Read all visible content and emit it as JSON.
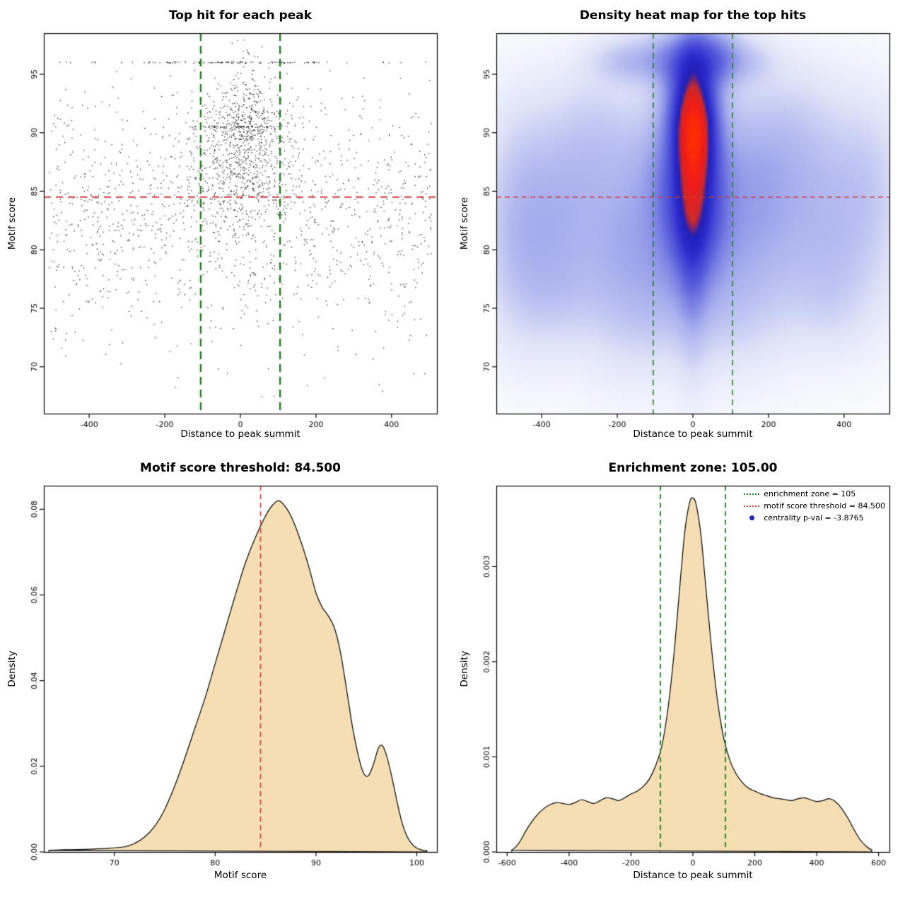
{
  "page": {
    "background": "#ffffff"
  },
  "chart_data": [
    {
      "type": "scatter",
      "title": "Top hit for each peak",
      "xlabel": "Distance to peak summit",
      "ylabel": "Motif score",
      "xlim": [
        -520,
        520
      ],
      "ylim": [
        66,
        98.5
      ],
      "xticks": [
        -400,
        -200,
        0,
        200,
        400
      ],
      "xtick_labels": [
        "-400",
        "-200",
        "0",
        "200",
        "400"
      ],
      "yticks": [
        70,
        75,
        80,
        85,
        90,
        95
      ],
      "ytick_labels": [
        "70",
        "75",
        "80",
        "85",
        "90",
        "95"
      ],
      "point_color": "#000000",
      "seed": 1337,
      "hline": {
        "y": 84.5,
        "color": "#d23b3b",
        "dash": [
          10,
          7
        ],
        "width": 2.2
      },
      "vlines": {
        "xs": [
          -105,
          105
        ],
        "color": "#1e7d1e",
        "dash": [
          11,
          7
        ],
        "width": 2.4
      },
      "clusters": [
        {
          "n": 1300,
          "x": [
            "uniform",
            -505,
            505
          ],
          "y": [
            "normal",
            83,
            5
          ],
          "yclip": [
            67,
            95.5
          ]
        },
        {
          "n": 600,
          "x": [
            "normal",
            0,
            75
          ],
          "xclip": [
            -505,
            505
          ],
          "y": [
            "normal",
            87.5,
            3.2
          ],
          "yclip": [
            72,
            95.7
          ]
        },
        {
          "n": 280,
          "x": [
            "normal",
            15,
            48
          ],
          "y": [
            "normal",
            90.8,
            2.1
          ],
          "yclip": [
            75,
            97.8
          ]
        },
        {
          "n": 70,
          "x": [
            "normal",
            -20,
            110
          ],
          "y": [
            "const",
            96,
            0.07
          ]
        },
        {
          "n": 45,
          "x": [
            "uniform",
            -505,
            505
          ],
          "y": [
            "const",
            96,
            0.05
          ]
        },
        {
          "n": 60,
          "x": [
            "normal",
            -20,
            70
          ],
          "y": [
            "const",
            90.5,
            0.08
          ]
        },
        {
          "n": 22,
          "x": [
            "uniform",
            -480,
            490
          ],
          "y": [
            "uniform",
            66.8,
            74.5
          ]
        },
        {
          "n": 10,
          "x": [
            "normal",
            0,
            30
          ],
          "y": [
            "uniform",
            96.3,
            98.1
          ]
        }
      ]
    },
    {
      "type": "heatmap",
      "title": "Density heat map for the top hits",
      "xlabel": "Distance to peak summit",
      "ylabel": "Motif score",
      "xlim": [
        -520,
        520
      ],
      "ylim": [
        66,
        98.5
      ],
      "xticks": [
        -400,
        -200,
        0,
        200,
        400
      ],
      "xtick_labels": [
        "-400",
        "-200",
        "0",
        "200",
        "400"
      ],
      "yticks": [
        70,
        75,
        80,
        85,
        90,
        95
      ],
      "ytick_labels": [
        "70",
        "75",
        "80",
        "85",
        "90",
        "95"
      ],
      "hline": {
        "y": 84.5,
        "color": "#d23b3b",
        "dash": [
          7,
          5
        ],
        "width": 1.3
      },
      "vlines": {
        "xs": [
          -105,
          105
        ],
        "color": "#1e7d1e",
        "dash": [
          8,
          6
        ],
        "width": 1.5
      },
      "gamma": 0.45,
      "color_stops": [
        [
          0,
          "#ffffff"
        ],
        [
          0.18,
          "#dfe3f8"
        ],
        [
          0.35,
          "#aab1ee"
        ],
        [
          0.52,
          "#5c63dd"
        ],
        [
          0.66,
          "#2e2ecf"
        ],
        [
          0.75,
          "#1f1fb8"
        ],
        [
          0.8,
          "#cc2a2a"
        ],
        [
          0.88,
          "#ee1c1c"
        ],
        [
          1,
          "#ff2e00"
        ]
      ],
      "blobs": [
        [
          0,
          87,
          60,
          5.5,
          1.5
        ],
        [
          5,
          89.8,
          32,
          2.8,
          2.3
        ],
        [
          0,
          83.5,
          50,
          3.5,
          1.1
        ],
        [
          -3,
          91.8,
          38,
          2.6,
          1.3
        ],
        [
          0,
          86,
          25,
          7,
          1.2
        ],
        [
          0,
          95.8,
          55,
          1.8,
          0.75
        ],
        [
          -40,
          96.3,
          90,
          1.4,
          0.5
        ],
        [
          60,
          96.5,
          45,
          1.6,
          0.55
        ],
        [
          -170,
          96,
          60,
          1.1,
          0.28
        ],
        [
          140,
          96,
          50,
          1.1,
          0.25
        ],
        [
          -300,
          82,
          110,
          5,
          0.33
        ],
        [
          -390,
          85.5,
          80,
          4.5,
          0.26
        ],
        [
          -430,
          78,
          70,
          4,
          0.22
        ],
        [
          -180,
          79,
          80,
          5,
          0.26
        ],
        [
          -80,
          78,
          90,
          4,
          0.28
        ],
        [
          80,
          79.5,
          90,
          5,
          0.28
        ],
        [
          180,
          81,
          90,
          5,
          0.26
        ],
        [
          300,
          84.5,
          110,
          5,
          0.3
        ],
        [
          400,
          80,
          90,
          4.5,
          0.22
        ],
        [
          460,
          86.5,
          60,
          4,
          0.18
        ],
        [
          -250,
          89.5,
          70,
          3.5,
          0.22
        ],
        [
          250,
          89.5,
          80,
          3.5,
          0.2
        ],
        [
          -470,
          83,
          50,
          5,
          0.18
        ],
        [
          150,
          87,
          60,
          4,
          0.25
        ],
        [
          -120,
          86,
          60,
          4,
          0.3
        ],
        [
          -350,
          76.5,
          60,
          2.5,
          0.12
        ],
        [
          350,
          76,
          60,
          2.5,
          0.1
        ],
        [
          0,
          74.5,
          150,
          2.5,
          0.1
        ]
      ]
    },
    {
      "type": "density",
      "title": "Motif score threshold: 84.500",
      "xlabel": "Motif score",
      "ylabel": "Density",
      "xlim": [
        63,
        102
      ],
      "ylim": [
        0,
        0.0855
      ],
      "xticks": [
        70,
        80,
        90,
        100
      ],
      "xtick_labels": [
        "70",
        "80",
        "90",
        "100"
      ],
      "yticks": [
        0,
        0.02,
        0.04,
        0.06,
        0.08
      ],
      "ytick_labels": [
        "0.00",
        "0.02",
        "0.04",
        "0.06",
        "0.08"
      ],
      "fill": "#f5deb3",
      "stroke": "#000000",
      "vlines": {
        "xs": [
          84.5
        ],
        "color": "#d23b3b",
        "dash": [
          7,
          5
        ],
        "width": 1.6
      },
      "curve": [
        [
          63.5,
          0.0004
        ],
        [
          65,
          0.0005
        ],
        [
          67,
          0.0006
        ],
        [
          69,
          0.0008
        ],
        [
          71,
          0.0012
        ],
        [
          72,
          0.002
        ],
        [
          73,
          0.0035
        ],
        [
          74,
          0.006
        ],
        [
          75,
          0.01
        ],
        [
          76,
          0.0155
        ],
        [
          77,
          0.022
        ],
        [
          78,
          0.029
        ],
        [
          79,
          0.036
        ],
        [
          80,
          0.044
        ],
        [
          81,
          0.052
        ],
        [
          82,
          0.06
        ],
        [
          83,
          0.0675
        ],
        [
          84,
          0.0735
        ],
        [
          85,
          0.0785
        ],
        [
          85.7,
          0.081
        ],
        [
          86.3,
          0.082
        ],
        [
          87,
          0.0805
        ],
        [
          87.7,
          0.0775
        ],
        [
          88.5,
          0.0725
        ],
        [
          89.3,
          0.0665
        ],
        [
          90,
          0.0605
        ],
        [
          90.6,
          0.0572
        ],
        [
          91.2,
          0.0552
        ],
        [
          91.8,
          0.0525
        ],
        [
          92.4,
          0.047
        ],
        [
          93,
          0.0385
        ],
        [
          93.6,
          0.0295
        ],
        [
          94.2,
          0.0225
        ],
        [
          94.7,
          0.0185
        ],
        [
          95.2,
          0.0178
        ],
        [
          95.7,
          0.0205
        ],
        [
          96.2,
          0.0243
        ],
        [
          96.6,
          0.0248
        ],
        [
          97,
          0.0225
        ],
        [
          97.5,
          0.0178
        ],
        [
          98,
          0.0122
        ],
        [
          98.5,
          0.0072
        ],
        [
          99,
          0.0038
        ],
        [
          99.5,
          0.0019
        ],
        [
          100,
          0.0009
        ],
        [
          100.6,
          0.0004
        ],
        [
          101,
          0.0003
        ]
      ]
    },
    {
      "type": "density",
      "title": "Enrichment zone: 105.00",
      "xlabel": "Distance to peak summit",
      "ylabel": "Density",
      "xlim": [
        -635,
        635
      ],
      "ylim": [
        0,
        0.00385
      ],
      "xticks": [
        -600,
        -400,
        -200,
        0,
        200,
        400,
        600
      ],
      "xtick_labels": [
        "-600",
        "-400",
        "-200",
        "0",
        "200",
        "400",
        "600"
      ],
      "yticks": [
        0,
        0.001,
        0.002,
        0.003
      ],
      "ytick_labels": [
        "0.000",
        "0.001",
        "0.002",
        "0.003"
      ],
      "fill": "#f5deb3",
      "stroke": "#000000",
      "vlines": {
        "xs": [
          -105,
          105
        ],
        "color": "#1e7d1e",
        "dash": [
          7,
          5
        ],
        "width": 1.8
      },
      "legend": {
        "items": [
          {
            "label": "enrichment zone = 105",
            "type": "line",
            "color": "#1e7d1e"
          },
          {
            "label": "motif score threshold = 84.500",
            "type": "line",
            "color": "#d23b3b"
          },
          {
            "label": "centrality p-val = -3.8765",
            "type": "dot",
            "color": "#2424b4"
          }
        ]
      },
      "curve": [
        [
          -585,
          2e-05
        ],
        [
          -570,
          6e-05
        ],
        [
          -555,
          0.00013
        ],
        [
          -540,
          0.00022
        ],
        [
          -520,
          0.00032
        ],
        [
          -500,
          0.0004
        ],
        [
          -480,
          0.00046
        ],
        [
          -460,
          0.0005
        ],
        [
          -440,
          0.00052
        ],
        [
          -420,
          0.00051
        ],
        [
          -400,
          0.0005
        ],
        [
          -380,
          0.00052
        ],
        [
          -360,
          0.00055
        ],
        [
          -340,
          0.00053
        ],
        [
          -320,
          0.00051
        ],
        [
          -300,
          0.00054
        ],
        [
          -280,
          0.00057
        ],
        [
          -260,
          0.00056
        ],
        [
          -240,
          0.00054
        ],
        [
          -220,
          0.00057
        ],
        [
          -200,
          0.00061
        ],
        [
          -180,
          0.00064
        ],
        [
          -160,
          0.00069
        ],
        [
          -140,
          0.00077
        ],
        [
          -120,
          0.00091
        ],
        [
          -100,
          0.00112
        ],
        [
          -80,
          0.00152
        ],
        [
          -60,
          0.00212
        ],
        [
          -40,
          0.00288
        ],
        [
          -25,
          0.0034
        ],
        [
          -10,
          0.00368
        ],
        [
          0,
          0.00372
        ],
        [
          10,
          0.00366
        ],
        [
          25,
          0.00336
        ],
        [
          40,
          0.00285
        ],
        [
          60,
          0.00215
        ],
        [
          80,
          0.00158
        ],
        [
          100,
          0.00119
        ],
        [
          120,
          0.00096
        ],
        [
          140,
          0.00082
        ],
        [
          160,
          0.00073
        ],
        [
          180,
          0.00067
        ],
        [
          200,
          0.00064
        ],
        [
          220,
          0.00061
        ],
        [
          240,
          0.00059
        ],
        [
          260,
          0.00057
        ],
        [
          280,
          0.00056
        ],
        [
          300,
          0.00055
        ],
        [
          320,
          0.00054
        ],
        [
          340,
          0.00056
        ],
        [
          360,
          0.00057
        ],
        [
          380,
          0.00055
        ],
        [
          400,
          0.00053
        ],
        [
          420,
          0.00054
        ],
        [
          440,
          0.00056
        ],
        [
          460,
          0.00053
        ],
        [
          480,
          0.00046
        ],
        [
          500,
          0.00036
        ],
        [
          520,
          0.00024
        ],
        [
          540,
          0.00013
        ],
        [
          560,
          6e-05
        ],
        [
          578,
          2e-05
        ]
      ]
    }
  ]
}
